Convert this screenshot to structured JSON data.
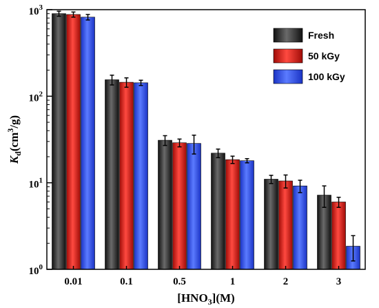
{
  "chart_data": {
    "type": "bar",
    "categories": [
      "0.01",
      "0.1",
      "0.5",
      "1",
      "2",
      "3"
    ],
    "series": [
      {
        "name": "Fresh",
        "color": "#2b2b2b",
        "values": [
          900,
          155,
          31,
          22,
          11,
          7.2
        ],
        "errors": [
          60,
          20,
          4,
          2.5,
          1.2,
          2.0
        ]
      },
      {
        "name": "50 kGy",
        "color": "#e0211d",
        "values": [
          880,
          145,
          29,
          18.5,
          10.5,
          6.0
        ],
        "errors": [
          60,
          18,
          3,
          1.8,
          1.8,
          0.8
        ]
      },
      {
        "name": "100 kGy",
        "color": "#2a4ef0",
        "values": [
          820,
          143,
          28.5,
          18,
          9.2,
          1.85
        ],
        "errors": [
          60,
          10,
          7,
          1.0,
          1.5,
          0.6
        ]
      }
    ],
    "yscale": "log",
    "ylim": [
      1,
      1000
    ],
    "ytick_values": [
      1,
      10,
      100,
      1000
    ],
    "ytick_exponents": [
      "0",
      "1",
      "2",
      "3"
    ],
    "ytick_base": "10",
    "xlabel": {
      "pre": "[HNO",
      "sub": "3",
      "post": "](M)"
    },
    "ylabel": {
      "k": "K",
      "d": "d",
      "unit": "(cm",
      "sup": "3",
      "tail": "/g)"
    },
    "legend_position": "top-right",
    "grid": false
  }
}
